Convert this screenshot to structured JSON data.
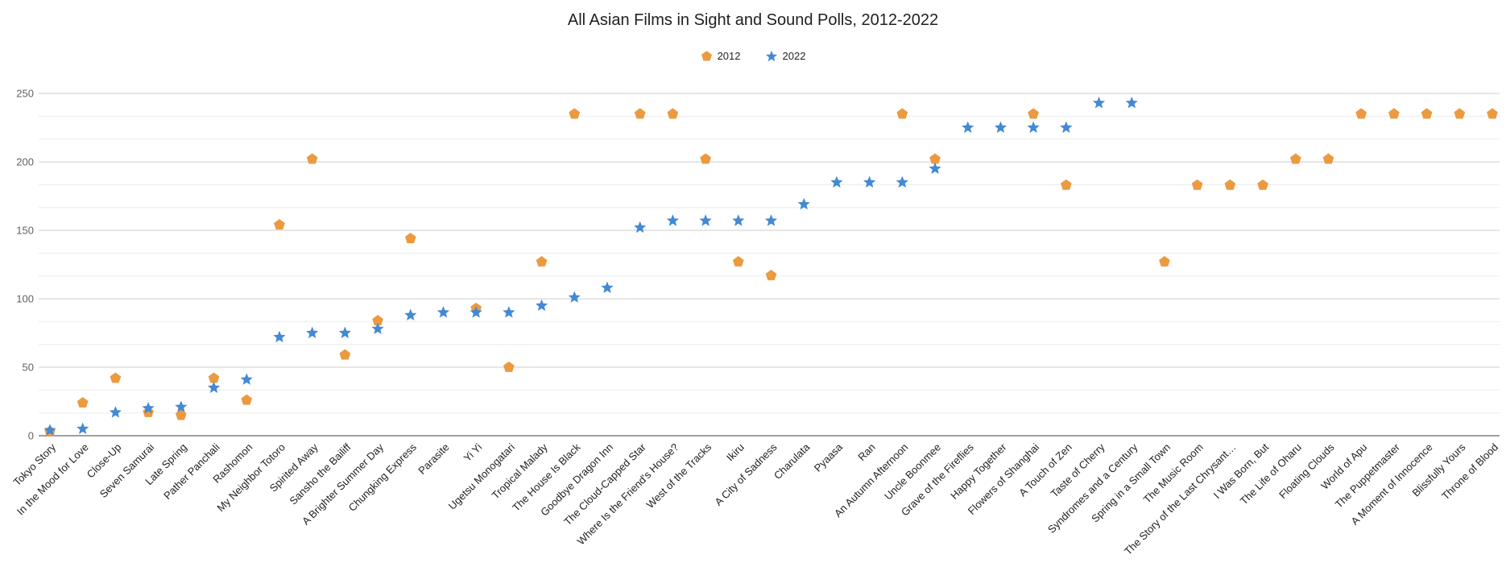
{
  "chart_data": {
    "type": "scatter",
    "title": "All Asian Films in Sight and Sound Polls, 2012-2022",
    "xlabel": "",
    "ylabel": "",
    "ylim": [
      0,
      250
    ],
    "yticks": [
      0,
      50,
      100,
      150,
      200,
      250
    ],
    "grid": "horizontal major every 50, two minor lines between majors",
    "legend_position": "top-center",
    "categories": [
      "Tokyo Story",
      "In the Mood for Love",
      "Close-Up",
      "Seven Samurai",
      "Late Spring",
      "Pather Panchali",
      "Rashomon",
      "My Neighbor Totoro",
      "Spirited Away",
      "Sansho the Bailiff",
      "A Brighter Summer Day",
      "Chungking Express",
      "Parasite",
      "Yi Yi",
      "Ugetsu Monogatari",
      "Tropical Malady",
      "The House Is Black",
      "Goodbye Dragon Inn",
      "The Cloud-Capped Star",
      "Where Is the Friend's House?",
      "West of the Tracks",
      "Ikiru",
      "A City of Sadness",
      "Charulata",
      "Pyaasa",
      "Ran",
      "An Autumn Afternoon",
      "Uncle Boonmee",
      "Grave of the Fireflies",
      "Happy Together",
      "Flowers of Shanghai",
      "A Touch of Zen",
      "Taste of Cherry",
      "Syndromes and a Century",
      "Spring in a Small Town",
      "The Music Room",
      "The Story of the Last Chrysant…",
      "I Was Born, But",
      "The Life of Oharu",
      "Floating Clouds",
      "World of Apu",
      "The Puppetmaster",
      "A Moment of Innocence",
      "Blissfully Yours",
      "Throne of Blood"
    ],
    "series": [
      {
        "name": "2012",
        "marker": "pentagon",
        "color": "#EC9A3F",
        "values": [
          3,
          24,
          42,
          17,
          15,
          42,
          26,
          154,
          202,
          59,
          84,
          144,
          null,
          93,
          50,
          127,
          235,
          null,
          235,
          235,
          202,
          127,
          117,
          null,
          null,
          null,
          235,
          202,
          null,
          null,
          235,
          183,
          null,
          null,
          127,
          183,
          183,
          183,
          202,
          202,
          235,
          235,
          235,
          235,
          235
        ]
      },
      {
        "name": "2022",
        "marker": "star",
        "color": "#4389D3",
        "values": [
          4,
          5,
          17,
          20,
          21,
          35,
          41,
          72,
          75,
          75,
          78,
          88,
          90,
          90,
          90,
          95,
          101,
          108,
          152,
          157,
          157,
          157,
          157,
          169,
          185,
          185,
          185,
          195,
          225,
          225,
          225,
          225,
          243,
          243,
          null,
          null,
          null,
          null,
          null,
          null,
          null,
          null,
          null,
          null,
          null
        ]
      }
    ],
    "colors": {
      "grid_major": "#cccccc",
      "grid_minor": "#ececec",
      "baseline": "#9e9e9e",
      "ytick_label": "#616161",
      "xtick_label": "#222222",
      "title": "#212121"
    }
  }
}
